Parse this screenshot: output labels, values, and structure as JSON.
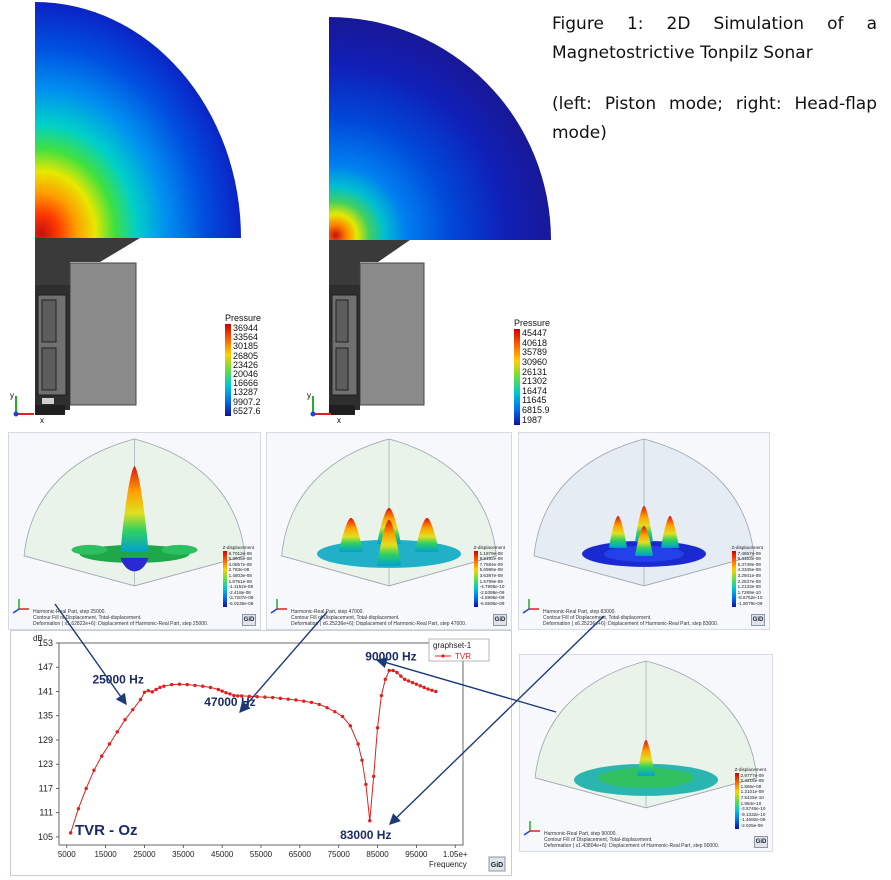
{
  "caption": {
    "line1": "Figure 1: 2D Simulation of a Magnetostrictive Tonpilz Sonar",
    "line2": "(left: Piston mode; right: Head-flap mode)"
  },
  "legend_left": {
    "title": "Pressure",
    "values": [
      "36944",
      "33564",
      "30185",
      "26805",
      "23426",
      "20046",
      "16666",
      "13287",
      "9907.2",
      "6527.6"
    ]
  },
  "legend_right": {
    "title": "Pressure",
    "values": [
      "45447",
      "40618",
      "35789",
      "30960",
      "26131",
      "21302",
      "16474",
      "11645",
      "6815.9",
      "1987"
    ]
  },
  "axes_labels": {
    "x": "x",
    "y": "y"
  },
  "panels": [
    {
      "legend_title": "Z-displacement",
      "values": [
        "6.7012e-08",
        "5.3945e-08",
        "4.0857e-08",
        "2.783e-08",
        "1.4803e-08",
        "1.8751e-09",
        "-1.1152e-08",
        "-2.418e-08",
        "-3.7207e-08",
        "-5.0235e-08"
      ],
      "foot": [
        "Harmonic-Real Part, step 25000.",
        "Contour Fill of Displacement, Total-displacement.",
        "Deformation ( x1.62822e+6): Displacement of Harmonic-Real Part, step 25000."
      ]
    },
    {
      "legend_title": "Z-displacement",
      "values": [
        "1.1879e-08",
        "9.8192e-09",
        "7.7584e-09",
        "5.6986e-09",
        "3.6397e-09",
        "1.5799e-09",
        "-4.7995e-10",
        "-2.5398e-09",
        "-4.5996e-09",
        "-6.6595e-09"
      ],
      "foot": [
        "Harmonic-Real Part, step 47000.",
        "Contour Fill of Displacement, Total-displacement.",
        "Deformation ( x6.25236e+6): Displacement of Harmonic-Real Part, step 47000."
      ]
    },
    {
      "legend_title": "Z-displacement",
      "values": [
        "7.4657e-09",
        "6.4153e-09",
        "5.3749e-09",
        "4.3345e-09",
        "3.2941e-09",
        "2.2537e-09",
        "1.2133e-09",
        "1.7289e-10",
        "-8.6752e-10",
        "-1.9079e-09"
      ],
      "foot": [
        "Harmonic-Real Part, step 83000.",
        "Contour Fill of Displacement, Total-displacement.",
        "Deformation ( x6.25236e+6): Displacement of Harmonic-Real Part, step 83000."
      ]
    },
    {
      "legend_title": "Z-displacement",
      "values": [
        "2.9777e-09",
        "2.4218e-09",
        "1.866e-09",
        "1.3101e-09",
        "7.5425e-10",
        "1.984e-10",
        "-3.5746e-10",
        "-9.1332e-10",
        "-1.4692e-09",
        "-2.025e-09"
      ],
      "foot": [
        "Harmonic-Real Part, step 90000.",
        "Contour Fill of Displacement, Total-displacement.",
        "Deformation ( x1.43804e+6): Displacement of Harmonic-Real Part, step 90000."
      ]
    }
  ],
  "gid_label": "GiD",
  "chart_data": {
    "type": "line",
    "ylabel": "dB",
    "xlabel": "Frequency",
    "ylim": [
      103,
      153
    ],
    "xlim": [
      3000,
      107000
    ],
    "yticks": [
      "153",
      "147",
      "141",
      "135",
      "129",
      "123",
      "117",
      "111",
      "105"
    ],
    "xticks": [
      "5000",
      "15000",
      "25000",
      "35000",
      "45000",
      "55000",
      "65000",
      "75000",
      "85000",
      "95000",
      "1.05e+"
    ],
    "legend_title": "graphset-1",
    "series": [
      {
        "name": "TVR",
        "color": "#e02020",
        "x": [
          6000,
          8000,
          10000,
          12000,
          14000,
          16000,
          18000,
          20000,
          22000,
          24000,
          25000,
          26000,
          27000,
          28000,
          29000,
          30000,
          32000,
          34000,
          36000,
          38000,
          40000,
          42000,
          44000,
          45000,
          46000,
          47000,
          48000,
          49000,
          50000,
          52000,
          54000,
          56000,
          58000,
          60000,
          62000,
          64000,
          66000,
          68000,
          70000,
          72000,
          74000,
          76000,
          78000,
          80000,
          81000,
          82000,
          83000,
          84000,
          85000,
          86000,
          87000,
          88000,
          89000,
          90000,
          91000,
          92000,
          93000,
          94000,
          95000,
          96000,
          97000,
          98000,
          99000,
          100000
        ],
        "y": [
          106,
          112,
          117,
          121.5,
          125,
          128,
          131,
          134,
          136.5,
          139,
          140.8,
          141.2,
          140.9,
          141.5,
          142,
          142.3,
          142.7,
          142.8,
          142.7,
          142.5,
          142.3,
          142,
          141.5,
          141.1,
          140.7,
          140.4,
          140,
          139.9,
          139.9,
          139.8,
          139.7,
          139.6,
          139.5,
          139.3,
          139.1,
          138.9,
          138.6,
          138.3,
          137.8,
          137,
          136,
          134.8,
          132.5,
          128,
          124,
          118,
          109,
          120,
          132,
          140,
          144,
          146.2,
          146.2,
          145.7,
          144.8,
          144,
          143.6,
          143.2,
          142.8,
          142.4,
          142,
          141.6,
          141.3,
          141
        ]
      }
    ],
    "annotations": [
      {
        "text": "25000 Hz",
        "x": 25000,
        "y": 141
      },
      {
        "text": "47000 Hz",
        "x": 47000,
        "y": 140.4
      },
      {
        "text": "90000 Hz",
        "x": 90000,
        "y": 146.2
      },
      {
        "text": "83000 Hz",
        "x": 83000,
        "y": 109
      }
    ],
    "inset_label": "TVR - Oz"
  }
}
